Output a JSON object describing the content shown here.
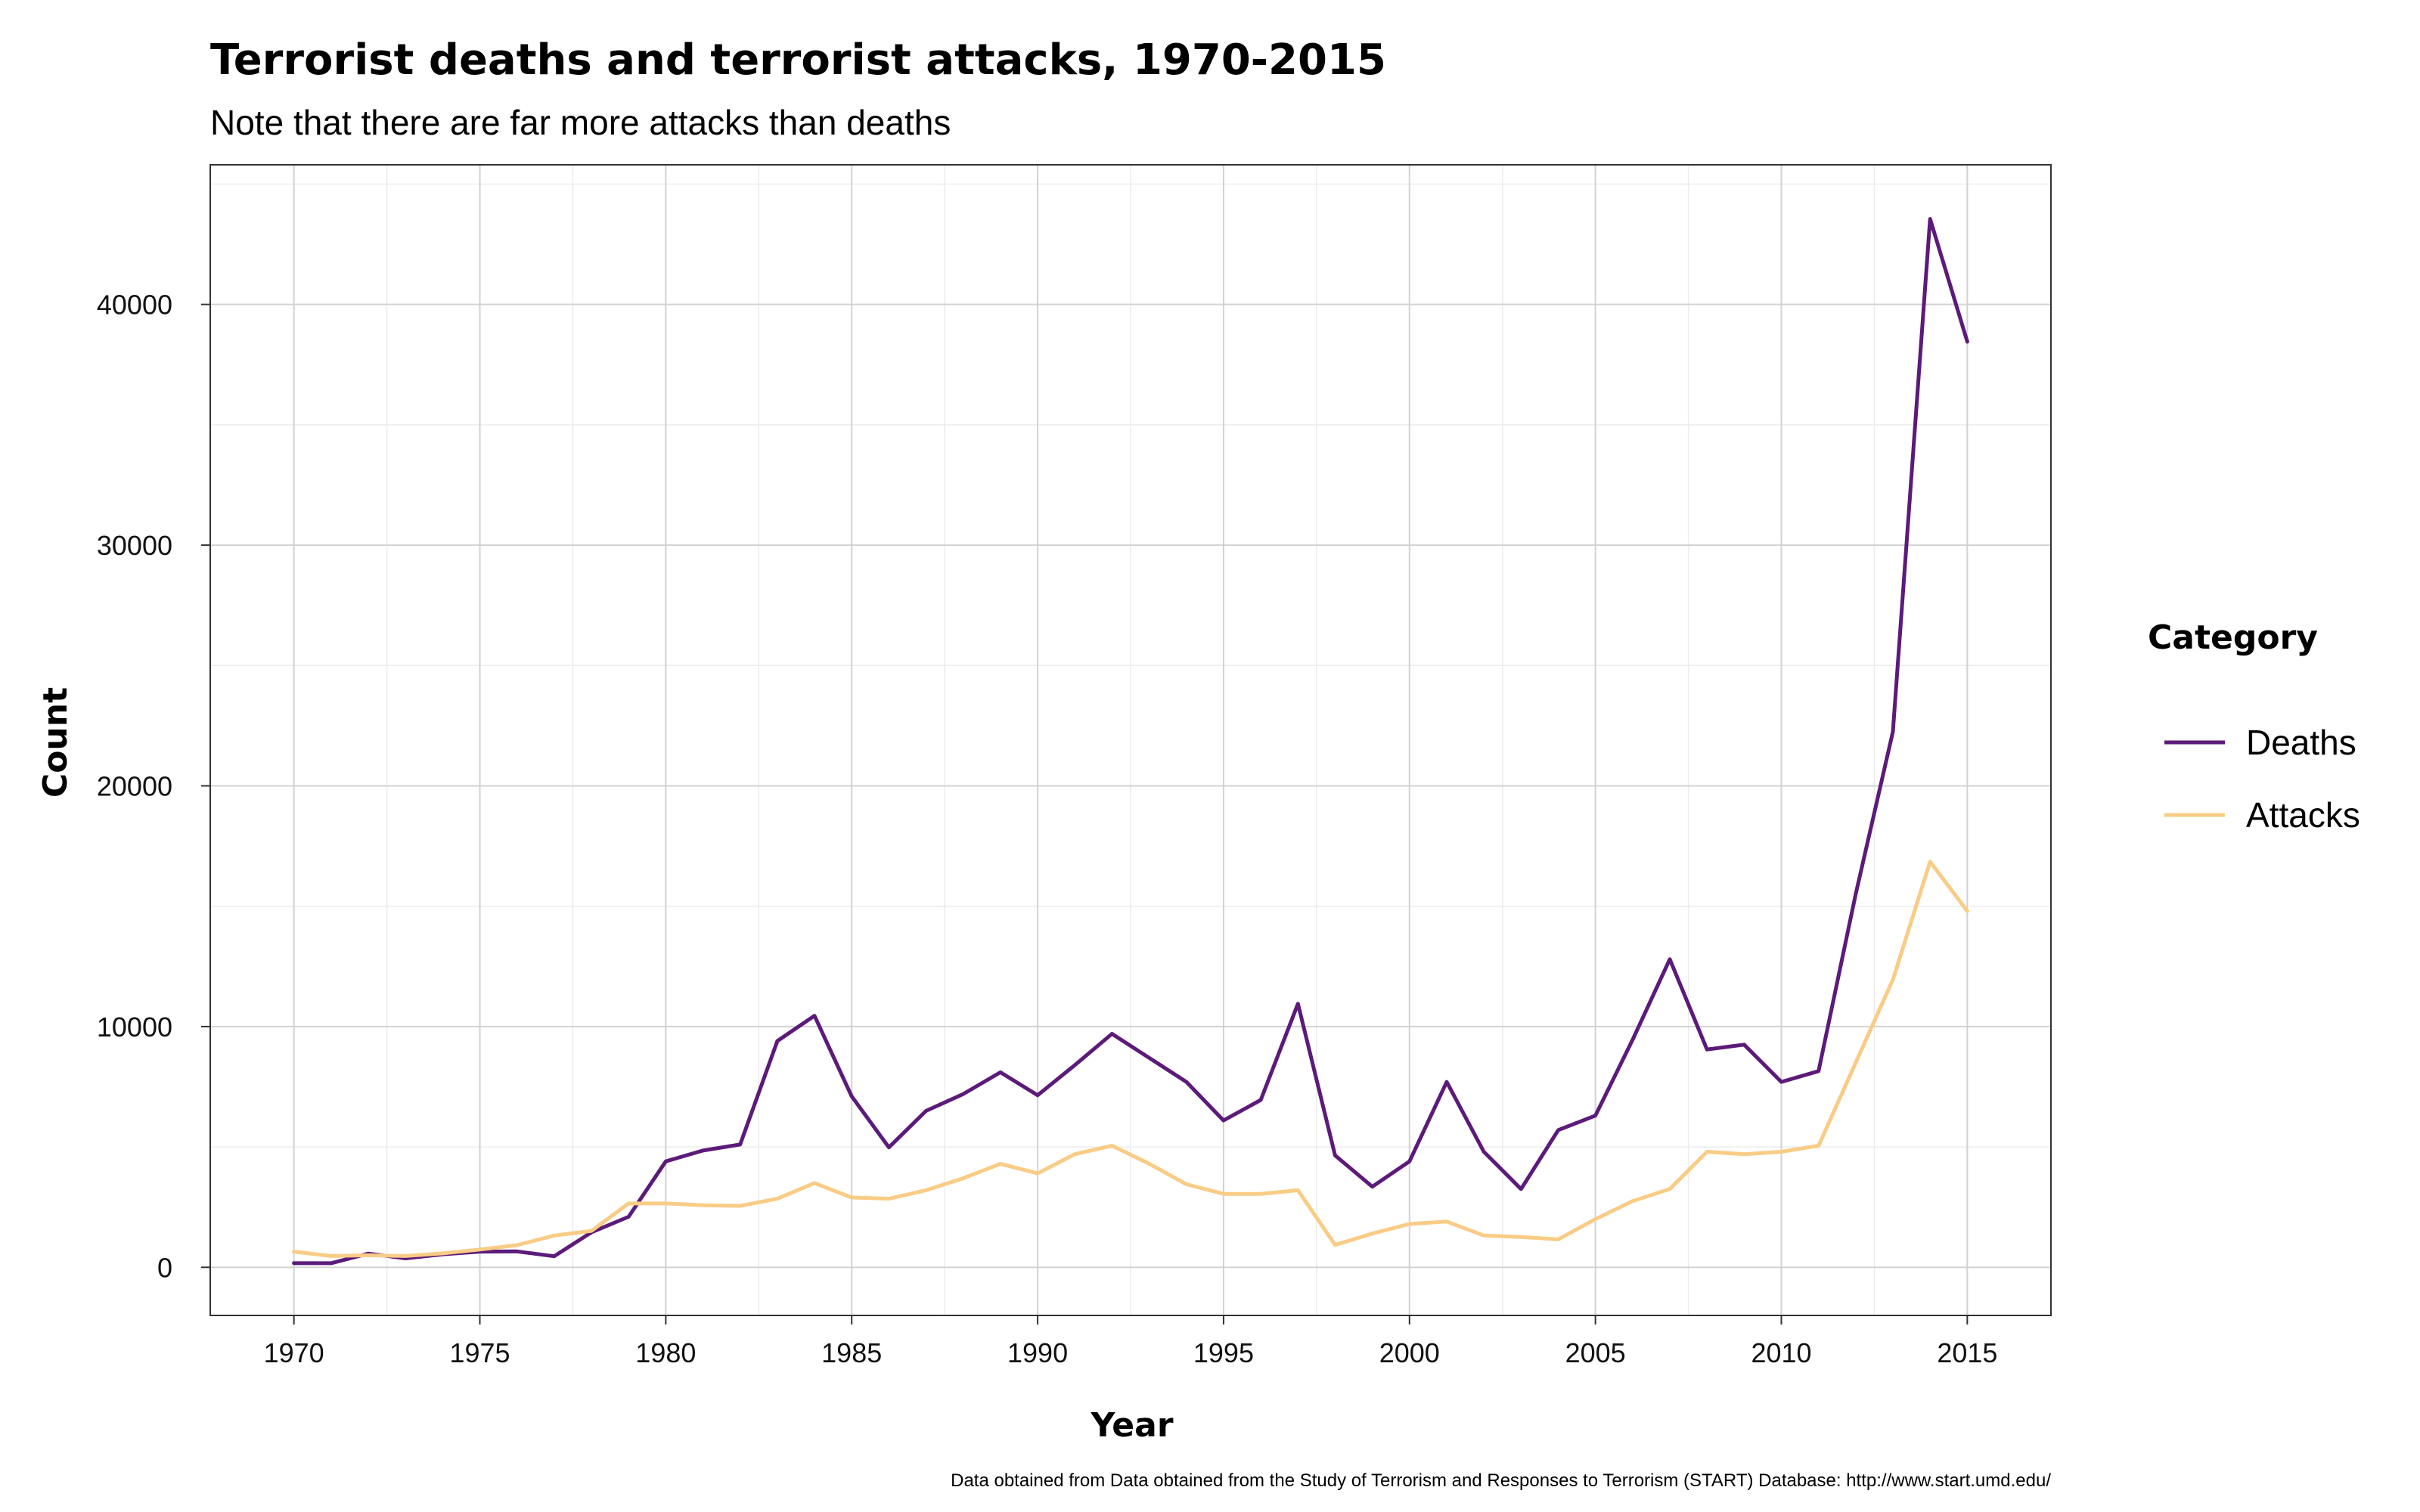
{
  "colors": {
    "deaths": "#5c1a7a",
    "attacks": "#f9cc86",
    "grid_major": "#d2d2d2",
    "grid_minor": "#ececec",
    "panel_border": "#333333"
  },
  "chart_data": {
    "type": "line",
    "title": "Terrorist deaths and terrorist attacks, 1970-2015",
    "subtitle": "Note that there are far more attacks than deaths",
    "xlabel": "Year",
    "ylabel": "Count",
    "caption": "Data obtained from Data obtained from the Study of Terrorism and Responses to Terrorism (START) Database: http://www.start.umd.edu/",
    "xlim": [
      1967.75,
      2017.25
    ],
    "ylim": [
      -2000,
      45800
    ],
    "x_ticks": [
      1970,
      1975,
      1980,
      1985,
      1990,
      1995,
      2000,
      2005,
      2010,
      2015
    ],
    "y_ticks": [
      0,
      10000,
      20000,
      30000,
      40000
    ],
    "grid": true,
    "legend_title": "Category",
    "legend_position": "right",
    "x": [
      1970,
      1971,
      1972,
      1973,
      1974,
      1975,
      1976,
      1977,
      1978,
      1979,
      1980,
      1981,
      1982,
      1983,
      1984,
      1985,
      1986,
      1987,
      1988,
      1989,
      1990,
      1991,
      1992,
      1993,
      1994,
      1995,
      1996,
      1997,
      1998,
      1999,
      2000,
      2001,
      2002,
      2003,
      2004,
      2005,
      2006,
      2007,
      2008,
      2009,
      2010,
      2011,
      2012,
      2013,
      2014,
      2015
    ],
    "series": [
      {
        "name": "Deaths",
        "color": "#5c1a7a",
        "values": [
          170,
          170,
          570,
          370,
          540,
          650,
          660,
          460,
          1450,
          2100,
          4400,
          4850,
          5100,
          9400,
          10450,
          7100,
          4980,
          6500,
          7200,
          8100,
          7150,
          8400,
          9700,
          8700,
          7700,
          6100,
          6950,
          10950,
          4650,
          3350,
          4400,
          7700,
          4800,
          3250,
          5700,
          6300,
          9450,
          12800,
          9050,
          9250,
          7700,
          8150,
          15500,
          22250,
          43550,
          38450
        ]
      },
      {
        "name": "Attacks",
        "color": "#f9cc86",
        "values": [
          650,
          470,
          500,
          470,
          580,
          740,
          920,
          1320,
          1510,
          2650,
          2650,
          2580,
          2550,
          2850,
          3500,
          2900,
          2850,
          3200,
          3700,
          4300,
          3900,
          4700,
          5050,
          4300,
          3450,
          3050,
          3050,
          3200,
          930,
          1400,
          1800,
          1900,
          1320,
          1260,
          1160,
          2000,
          2750,
          3250,
          4800,
          4700,
          4800,
          5050,
          8500,
          11950,
          16850,
          14800
        ]
      }
    ]
  }
}
